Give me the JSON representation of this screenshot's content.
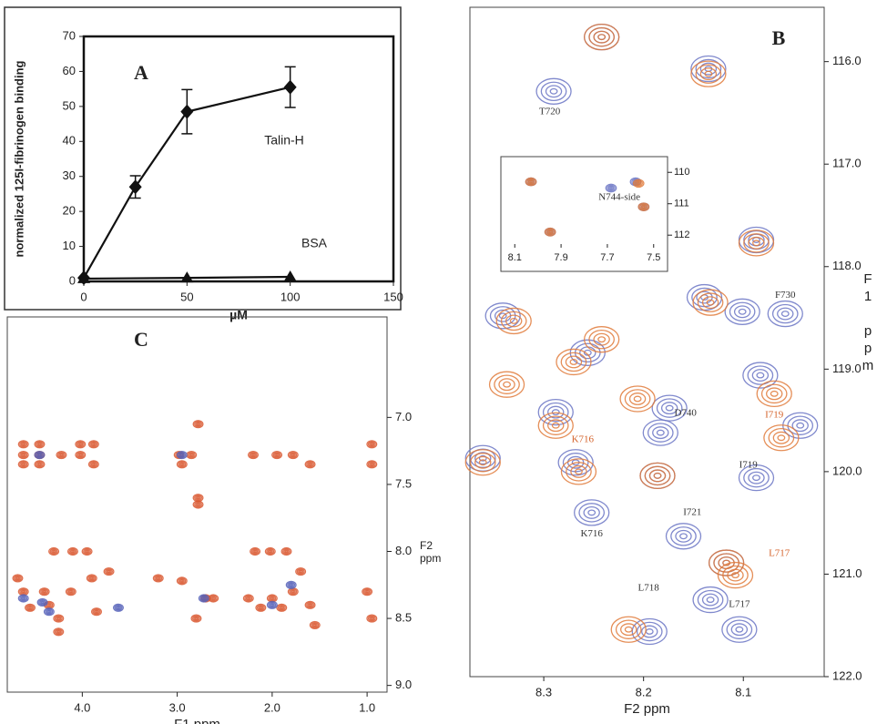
{
  "chart_data": [
    {
      "type": "line",
      "title": "A",
      "xlabel": "µM",
      "ylabel": "normalized 125I-fibrinogen binding",
      "xlim": [
        0,
        150
      ],
      "xticks": [
        0,
        50,
        100,
        150
      ],
      "ylim": [
        0,
        70
      ],
      "yticks": [
        0,
        10,
        20,
        30,
        40,
        50,
        60,
        70
      ],
      "series": [
        {
          "name": "Talin-H",
          "color": "#111111",
          "marker": "diamond",
          "x": [
            0,
            25,
            50,
            100
          ],
          "values": [
            1,
            27,
            48.5,
            55.5
          ],
          "errors": [
            0,
            3.2,
            6.3,
            5.8
          ]
        },
        {
          "name": "BSA",
          "color": "#111111",
          "marker": "triangle",
          "x": [
            0,
            50,
            100
          ],
          "values": [
            0.8,
            1,
            1.3
          ]
        }
      ]
    },
    {
      "type": "nmr",
      "title": "B",
      "xlabel": "F2 ppm",
      "ylabel": "F1 ppm",
      "xlim": [
        8.374,
        8.019
      ],
      "xticks": [
        8.3,
        8.2,
        8.1
      ],
      "ylim": [
        115.47,
        122.0
      ],
      "yticks": [
        {
          "value": 116,
          "label": "116.0"
        },
        {
          "value": 117,
          "label": "117.0"
        },
        {
          "value": 118,
          "label": "118.0"
        },
        {
          "value": 119,
          "label": "119.0"
        },
        {
          "value": 120,
          "label": "120.0"
        },
        {
          "value": 121,
          "label": "121.0"
        },
        {
          "value": 122,
          "label": "122.0"
        }
      ],
      "series": [
        {
          "color": "#6a74c4",
          "x": [
            8.242,
            8.135,
            8.29,
            8.087,
            8.139,
            8.101,
            8.058,
            8.341,
            8.256,
            8.174,
            8.288,
            8.083,
            8.043,
            8.183,
            8.361,
            8.268,
            8.087,
            8.252,
            8.186,
            8.16,
            8.117,
            8.133,
            8.104,
            8.194
          ],
          "values": [
            115.76,
            116.07,
            116.29,
            117.74,
            118.3,
            118.44,
            118.46,
            118.48,
            118.84,
            119.38,
            119.42,
            119.06,
            119.55,
            119.62,
            119.87,
            119.91,
            120.06,
            120.4,
            120.04,
            120.63,
            120.89,
            121.25,
            121.54,
            121.56
          ]
        },
        {
          "color": "#e07a3a",
          "x": [
            8.242,
            8.135,
            8.087,
            8.133,
            8.33,
            8.242,
            8.27,
            8.206,
            8.337,
            8.288,
            8.069,
            8.062,
            8.361,
            8.265,
            8.186,
            8.108,
            8.117,
            8.215
          ],
          "values": [
            115.76,
            116.12,
            117.77,
            118.35,
            118.53,
            118.71,
            118.93,
            119.29,
            119.15,
            119.55,
            119.24,
            119.67,
            119.91,
            120.0,
            120.04,
            121.01,
            120.89,
            121.54
          ]
        }
      ],
      "annotations": [
        {
          "text": "T720",
          "x": 8.294,
          "y": 116.49,
          "color": "#333333"
        },
        {
          "text": "F730",
          "x": 8.058,
          "y": 118.28,
          "color": "#333333"
        },
        {
          "text": "D740",
          "x": 8.158,
          "y": 119.43,
          "color": "#333333"
        },
        {
          "text": "K716",
          "x": 8.261,
          "y": 119.69,
          "color": "#d4622a"
        },
        {
          "text": "I719",
          "x": 8.069,
          "y": 119.45,
          "color": "#d4622a"
        },
        {
          "text": "I719",
          "x": 8.095,
          "y": 119.94,
          "color": "#333333"
        },
        {
          "text": "I721",
          "x": 8.151,
          "y": 120.4,
          "color": "#333333"
        },
        {
          "text": "K716",
          "x": 8.252,
          "y": 120.61,
          "color": "#333333"
        },
        {
          "text": "L718",
          "x": 8.195,
          "y": 121.14,
          "color": "#333333"
        },
        {
          "text": "L717",
          "x": 8.064,
          "y": 120.8,
          "color": "#d4622a"
        },
        {
          "text": "L717",
          "x": 8.104,
          "y": 121.3,
          "color": "#333333"
        }
      ],
      "inset": {
        "type": "nmr",
        "xlim": [
          8.16,
          7.44
        ],
        "xticks": [
          8.1,
          7.9,
          7.7,
          7.5
        ],
        "ylim": [
          109.5,
          112.4
        ],
        "yticks": [
          110,
          111,
          112
        ],
        "series": [
          {
            "color": "#6a74c4",
            "x": [
              8.03,
              7.947,
              7.684,
              7.578,
              7.543
            ],
            "values": [
              110.3,
              111.9,
              110.5,
              110.3,
              111.1
            ]
          },
          {
            "color": "#e07a3a",
            "x": [
              8.03,
              7.947,
              7.565,
              7.543
            ],
            "values": [
              110.3,
              111.9,
              110.35,
              111.1
            ]
          }
        ],
        "annotations": [
          {
            "text": "N744-side",
            "x": 7.648,
            "y": 110.8,
            "color": "#333333"
          }
        ]
      }
    },
    {
      "type": "nmr",
      "title": "C",
      "xlabel": "F1 ppm",
      "ylabel": "F2 ppm",
      "xlim": [
        4.79,
        0.79
      ],
      "xticks": [
        {
          "value": 4,
          "label": "4.0"
        },
        {
          "value": 3,
          "label": "3.0"
        },
        {
          "value": 2,
          "label": "2.0"
        },
        {
          "value": 1,
          "label": "1.0"
        }
      ],
      "ylim": [
        6.25,
        9.05
      ],
      "yticks": [
        {
          "value": 7,
          "label": "7.0"
        },
        7.5,
        {
          "value": 8,
          "label": "8.0"
        },
        8.5,
        {
          "value": 9,
          "label": "9.0"
        }
      ],
      "series": [
        {
          "color": "#d9572f",
          "x": [
            4.62,
            4.62,
            4.62,
            4.45,
            4.45,
            4.45,
            4.22,
            4.02,
            4.02,
            3.88,
            3.88,
            2.98,
            2.95,
            2.85,
            2.78,
            2.78,
            2.78,
            2.2,
            1.95,
            1.78,
            1.6,
            0.95,
            0.95,
            4.3,
            4.1,
            3.95,
            2.18,
            2.02,
            1.85,
            4.68,
            4.62,
            4.55,
            4.4,
            4.35,
            4.25,
            4.12,
            3.9,
            3.85,
            3.72,
            3.2,
            2.95,
            2.7,
            2.62,
            2.25,
            2.12,
            2.0,
            1.9,
            1.78,
            1.7,
            1.6,
            1.55,
            1.0,
            0.95,
            4.25,
            2.8
          ],
          "values": [
            7.2,
            7.28,
            7.35,
            7.2,
            7.28,
            7.35,
            7.28,
            7.2,
            7.28,
            7.2,
            7.35,
            7.28,
            7.35,
            7.28,
            7.05,
            7.6,
            7.65,
            7.28,
            7.28,
            7.28,
            7.35,
            7.2,
            7.35,
            8.0,
            8.0,
            8.0,
            8.0,
            8.0,
            8.0,
            8.2,
            8.3,
            8.42,
            8.3,
            8.4,
            8.5,
            8.3,
            8.2,
            8.45,
            8.15,
            8.2,
            8.22,
            8.35,
            8.35,
            8.35,
            8.42,
            8.35,
            8.42,
            8.3,
            8.15,
            8.4,
            8.55,
            8.3,
            8.5,
            8.6,
            8.5
          ]
        },
        {
          "color": "#5560b8",
          "x": [
            4.62,
            4.42,
            3.62,
            2.72,
            2.0,
            4.45,
            2.95,
            1.8,
            4.35
          ],
          "values": [
            8.35,
            8.38,
            8.42,
            8.35,
            8.4,
            7.28,
            7.28,
            8.25,
            8.45
          ]
        }
      ]
    }
  ]
}
